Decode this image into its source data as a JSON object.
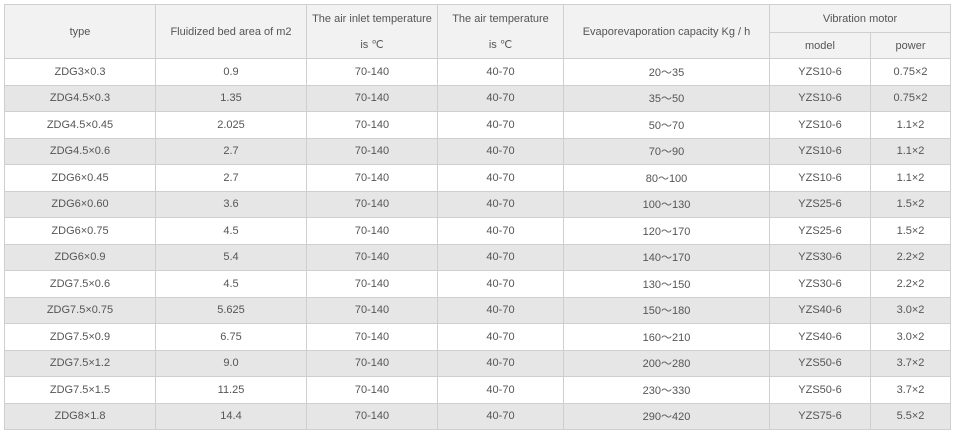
{
  "table": {
    "header": {
      "type": "type",
      "area": "Fluidized bed area of m2",
      "inlet": [
        "The air inlet temperature",
        "is ℃"
      ],
      "air": [
        "The air temperature",
        "is ℃"
      ],
      "evap": "Evaporevaporation capacity Kg / h",
      "motor": "Vibration motor",
      "model": "model",
      "power": "power"
    },
    "rows": [
      [
        "ZDG3×0.3",
        "0.9",
        "70-140",
        "40-70",
        "20～35",
        "YZS10-6",
        "0.75×2"
      ],
      [
        "ZDG4.5×0.3",
        "1.35",
        "70-140",
        "40-70",
        "35～50",
        "YZS10-6",
        "0.75×2"
      ],
      [
        "ZDG4.5×0.45",
        "2.025",
        "70-140",
        "40-70",
        "50～70",
        "YZS10-6",
        "1.1×2"
      ],
      [
        "ZDG4.5×0.6",
        "2.7",
        "70-140",
        "40-70",
        "70～90",
        "YZS10-6",
        "1.1×2"
      ],
      [
        "ZDG6×0.45",
        "2.7",
        "70-140",
        "40-70",
        "80～100",
        "YZS10-6",
        "1.1×2"
      ],
      [
        "ZDG6×0.60",
        "3.6",
        "70-140",
        "40-70",
        "100～130",
        "YZS25-6",
        "1.5×2"
      ],
      [
        "ZDG6×0.75",
        "4.5",
        "70-140",
        "40-70",
        "120～170",
        "YZS25-6",
        "1.5×2"
      ],
      [
        "ZDG6×0.9",
        "5.4",
        "70-140",
        "40-70",
        "140～170",
        "YZS30-6",
        "2.2×2"
      ],
      [
        "ZDG7.5×0.6",
        "4.5",
        "70-140",
        "40-70",
        "130～150",
        "YZS30-6",
        "2.2×2"
      ],
      [
        "ZDG7.5×0.75",
        "5.625",
        "70-140",
        "40-70",
        "150～180",
        "YZS40-6",
        "3.0×2"
      ],
      [
        "ZDG7.5×0.9",
        "6.75",
        "70-140",
        "40-70",
        "160～210",
        "YZS40-6",
        "3.0×2"
      ],
      [
        "ZDG7.5×1.2",
        "9.0",
        "70-140",
        "40-70",
        "200～280",
        "YZS50-6",
        "3.7×2"
      ],
      [
        "ZDG7.5×1.5",
        "11.25",
        "70-140",
        "40-70",
        "230～330",
        "YZS50-6",
        "3.7×2"
      ],
      [
        "ZDG8×1.8",
        "14.4",
        "70-140",
        "40-70",
        "290～420",
        "YZS75-6",
        "5.5×2"
      ]
    ]
  }
}
